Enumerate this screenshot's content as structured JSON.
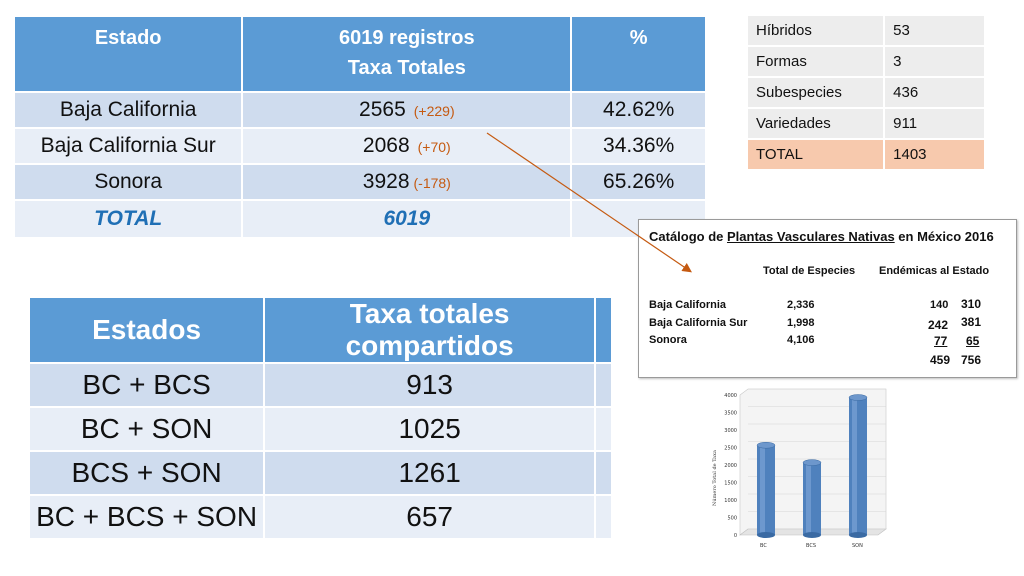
{
  "state_table": {
    "headers": [
      "Estado",
      "6019 registros",
      "Taxa Totales",
      "%"
    ],
    "rows": [
      {
        "estado": "Baja California",
        "taxa": "2565",
        "delta": "(+229)",
        "pct": "42.62%"
      },
      {
        "estado": "Baja California Sur",
        "taxa": "2068",
        "delta": "(+70)",
        "pct": "34.36%"
      },
      {
        "estado": "Sonora",
        "taxa": "3928",
        "delta": "(-178)",
        "pct": "65.26%"
      }
    ],
    "total": {
      "label": "TOTAL",
      "value": "6019"
    }
  },
  "shared_table": {
    "headers": [
      "Estados",
      "Taxa totales compartidos"
    ],
    "rows": [
      {
        "estados": "BC + BCS",
        "taxa": "913"
      },
      {
        "estados": "BC + SON",
        "taxa": "1025"
      },
      {
        "estados": "BCS + SON",
        "taxa": "1261"
      },
      {
        "estados": "BC + BCS + SON",
        "taxa": "657"
      }
    ]
  },
  "summary_table": {
    "rows": [
      {
        "label": "Híbridos",
        "value": "53"
      },
      {
        "label": "Formas",
        "value": "3"
      },
      {
        "label": "Subespecies",
        "value": "436"
      },
      {
        "label": "Variedades",
        "value": "911"
      },
      {
        "label": "TOTAL",
        "value": "1403"
      }
    ]
  },
  "catalog": {
    "title_pre": "Catálogo de ",
    "title_link": "Plantas Vasculares Nativas",
    "title_post": " en México 2016",
    "col1": "Total de Especies",
    "col2": "Endémicas al Estado",
    "rows": [
      {
        "name": "Baja California",
        "total": "2,336",
        "a": "140",
        "b": "310"
      },
      {
        "name": "Baja California Sur",
        "total": "1,998",
        "a": "242",
        "b": "381"
      },
      {
        "name": "Sonora",
        "total": "4,106",
        "a": "77",
        "b": "65"
      }
    ],
    "sum_a": "459",
    "sum_b": "756"
  },
  "chart_data": {
    "type": "bar",
    "categories": [
      "BC",
      "BCS",
      "SON"
    ],
    "values": [
      2565,
      2068,
      3928
    ],
    "ylabel": "Número Total de Taxa",
    "ylim": [
      0,
      4000
    ],
    "yticks": [
      "0",
      "500",
      "1000",
      "1500",
      "2000",
      "2500",
      "3000",
      "3500",
      "4000"
    ],
    "bar_color": "#4f81bd"
  },
  "colors": {
    "header_blue": "#5b9bd5",
    "row_dark": "#cfdcee",
    "row_light": "#e8eef7",
    "delta_orange": "#c55a11",
    "total_blue": "#1f6fb5",
    "total_salmon": "#f7c9ad",
    "arrow": "#c55a11"
  }
}
